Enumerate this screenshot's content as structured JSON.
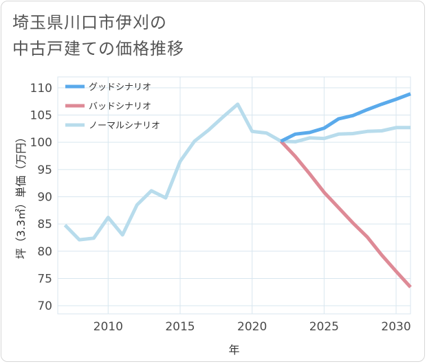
{
  "title_line1": "埼玉県川口市伊刈の",
  "title_line2": "中古戸建ての価格推移",
  "chart_data": {
    "type": "line",
    "xlabel": "年",
    "ylabel": "坪（3.3㎡）単価（万円）",
    "xlim": [
      2006.5,
      2031
    ],
    "ylim": [
      68.5,
      112
    ],
    "x_ticks": [
      2010,
      2015,
      2020,
      2025,
      2030
    ],
    "y_ticks": [
      70,
      75,
      80,
      85,
      90,
      95,
      100,
      105,
      110
    ],
    "grid": true,
    "legend_position": "top-left",
    "series": [
      {
        "name": "グッドシナリオ",
        "color": "#5aaaeb",
        "x": [
          2022,
          2023,
          2024,
          2025,
          2026,
          2027,
          2028,
          2029,
          2030,
          2031
        ],
        "y": [
          100.2,
          101.5,
          101.8,
          102.6,
          104.3,
          104.9,
          106.0,
          107.0,
          107.9,
          108.9
        ]
      },
      {
        "name": "バッドシナリオ",
        "color": "#de8a96",
        "x": [
          2022,
          2023,
          2024,
          2025,
          2026,
          2027,
          2028,
          2029,
          2030,
          2031
        ],
        "y": [
          100.2,
          97.4,
          94.2,
          90.8,
          88.0,
          85.2,
          82.6,
          79.3,
          76.3,
          73.4
        ]
      },
      {
        "name": "ノーマルシナリオ",
        "color": "#b8dcec",
        "x": [
          2007,
          2008,
          2009,
          2010,
          2011,
          2012,
          2013,
          2014,
          2015,
          2016,
          2017,
          2018,
          2019,
          2020,
          2021,
          2022,
          2023,
          2024,
          2025,
          2026,
          2027,
          2028,
          2029,
          2030,
          2031
        ],
        "y": [
          84.8,
          82.1,
          82.4,
          86.2,
          83.0,
          88.5,
          91.1,
          89.8,
          96.5,
          100.2,
          102.3,
          104.7,
          107.0,
          102.0,
          101.7,
          100.2,
          100.1,
          100.8,
          100.7,
          101.5,
          101.6,
          102.0,
          102.1,
          102.7,
          102.7
        ]
      }
    ]
  }
}
